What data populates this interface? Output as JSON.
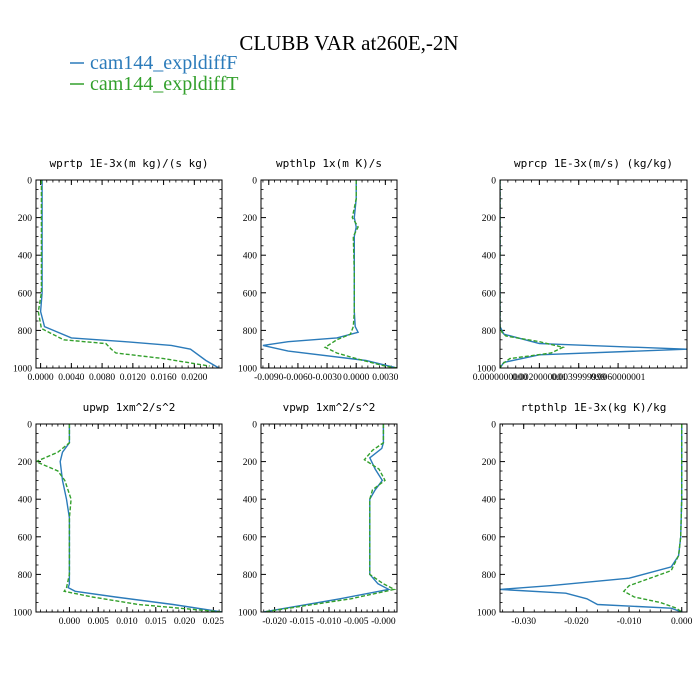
{
  "figure": {
    "title": "CLUBB VAR at260E,-2N",
    "colors": {
      "series_f": "#2b7bba",
      "series_t": "#33a02c",
      "axis": "#000000"
    }
  },
  "legend": [
    {
      "label": "cam144_expldiffF",
      "color": "#2b7bba",
      "dash": "solid"
    },
    {
      "label": "cam144_expldiffT",
      "color": "#33a02c",
      "dash": "dashed"
    }
  ],
  "chart_data": [
    {
      "type": "line",
      "title": "wprtp  1E-3x(m kg)/(s kg)",
      "xlim": [
        -0.0006,
        0.0236
      ],
      "ylim": [
        1000,
        0
      ],
      "xticks": [
        {
          "v": 0.0,
          "label": "0.0000"
        },
        {
          "v": 0.004,
          "label": "0.0040"
        },
        {
          "v": 0.008,
          "label": "0.0080"
        },
        {
          "v": 0.012,
          "label": "0.0120"
        },
        {
          "v": 0.016,
          "label": "0.0160"
        },
        {
          "v": 0.02,
          "label": "0.0200"
        }
      ],
      "yticks": [
        0,
        200,
        400,
        600,
        800,
        1000
      ],
      "series": [
        {
          "name": "cam144_expldiffF",
          "x": [
            0.0002,
            0.0002,
            0.0002,
            0.0002,
            0.0002,
            0.0002,
            0.0002,
            0.0,
            0.0005,
            0.004,
            0.011,
            0.017,
            0.0195,
            0.0215,
            0.0232
          ],
          "y": [
            0,
            100,
            200,
            300,
            400,
            500,
            600,
            700,
            780,
            840,
            860,
            880,
            900,
            960,
            1000
          ]
        },
        {
          "name": "cam144_expldiffT",
          "x": [
            0.0001,
            0.0001,
            0.0001,
            0.0001,
            0.0001,
            0.0001,
            0.0001,
            -0.0003,
            0.0001,
            0.003,
            0.0085,
            0.0092,
            0.0098,
            0.016,
            0.022
          ],
          "y": [
            0,
            100,
            200,
            300,
            400,
            500,
            600,
            700,
            790,
            850,
            870,
            900,
            920,
            950,
            990
          ]
        }
      ]
    },
    {
      "type": "line",
      "title": "wpthlp  1x(m K)/s",
      "xlim": [
        -0.0098,
        0.0042
      ],
      "ylim": [
        1000,
        0
      ],
      "xticks": [
        {
          "v": -0.009,
          "label": "-0.0090"
        },
        {
          "v": -0.006,
          "label": "-0.0060"
        },
        {
          "v": -0.003,
          "label": "-0.0030"
        },
        {
          "v": 0.0,
          "label": "0.0000"
        },
        {
          "v": 0.003,
          "label": "0.0030"
        }
      ],
      "yticks": [
        0,
        200,
        400,
        600,
        800,
        1000
      ],
      "series": [
        {
          "name": "cam144_expldiffF",
          "x": [
            0.0,
            0.0,
            -0.0002,
            0.0,
            -0.0002,
            -0.0002,
            -0.0002,
            -0.0001,
            0.0002,
            -0.002,
            -0.007,
            -0.0096,
            -0.007,
            0.001,
            0.0042
          ],
          "y": [
            0,
            100,
            200,
            250,
            300,
            500,
            700,
            780,
            810,
            840,
            860,
            880,
            910,
            960,
            1000
          ]
        },
        {
          "name": "cam144_expldiffT",
          "x": [
            0.0,
            0.0,
            -0.0004,
            0.0002,
            -0.0003,
            -0.0002,
            -0.0002,
            -0.0003,
            -0.0006,
            -0.002,
            -0.0032,
            -0.002,
            0.0,
            0.003,
            0.0042
          ],
          "y": [
            0,
            100,
            200,
            250,
            300,
            500,
            700,
            780,
            820,
            850,
            890,
            920,
            950,
            990,
            1000
          ]
        }
      ]
    },
    {
      "type": "line",
      "title": "wprcp  1E-3x(m/s) (kg/kg)",
      "xlim": [
        0.0,
        0.0095
      ],
      "ylim": [
        1000,
        0
      ],
      "xticks": [
        {
          "v": 0.0,
          "label": "0.0000000000"
        },
        {
          "v": 0.002,
          "label": "0.0020000001"
        },
        {
          "v": 0.004,
          "label": "0.0039999999"
        },
        {
          "v": 0.006,
          "label": "0.0060000001"
        }
      ],
      "yticks": [
        0,
        200,
        400,
        600,
        800,
        1000
      ],
      "series": [
        {
          "name": "cam144_expldiffF",
          "x": [
            0.0,
            0.0,
            0.0,
            0.0,
            0.0,
            0.0,
            0.0001,
            0.0002,
            0.002,
            0.0095,
            0.002,
            0.0002,
            0.0
          ],
          "y": [
            0,
            200,
            400,
            600,
            700,
            780,
            800,
            820,
            870,
            900,
            930,
            970,
            1000
          ]
        },
        {
          "name": "cam144_expldiffT",
          "x": [
            0.0,
            0.0,
            0.0,
            0.0,
            0.0,
            0.0,
            0.0001,
            0.0003,
            0.002,
            0.0032,
            0.0026,
            0.0005,
            0.0001,
            0.0
          ],
          "y": [
            0,
            200,
            400,
            600,
            700,
            780,
            810,
            830,
            860,
            890,
            920,
            950,
            980,
            1000
          ]
        }
      ]
    },
    {
      "type": "line",
      "title": "upwp  1xm^2/s^2",
      "xlim": [
        -0.0058,
        0.0265
      ],
      "ylim": [
        1000,
        0
      ],
      "xticks": [
        {
          "v": 0.0,
          "label": "0.000"
        },
        {
          "v": 0.005,
          "label": "0.005"
        },
        {
          "v": 0.01,
          "label": "0.010"
        },
        {
          "v": 0.015,
          "label": "0.015"
        },
        {
          "v": 0.02,
          "label": "0.020"
        },
        {
          "v": 0.025,
          "label": "0.025"
        }
      ],
      "yticks": [
        0,
        200,
        400,
        600,
        800,
        1000
      ],
      "series": [
        {
          "name": "cam144_expldiffF",
          "x": [
            0.0,
            0.0,
            -0.0012,
            -0.0016,
            -0.0012,
            -0.0005,
            0.0,
            0.0,
            0.0,
            -0.0002,
            0.001,
            0.008,
            0.018,
            0.0265
          ],
          "y": [
            0,
            100,
            150,
            200,
            300,
            400,
            500,
            700,
            850,
            870,
            890,
            920,
            960,
            1000
          ]
        },
        {
          "name": "cam144_expldiffT",
          "x": [
            0.0,
            0.0,
            -0.002,
            -0.0058,
            -0.002,
            -0.0008,
            0.0003,
            0.0,
            0.0,
            -0.0005,
            -0.0009,
            0.004,
            0.012,
            0.0265
          ],
          "y": [
            0,
            100,
            150,
            200,
            250,
            300,
            400,
            500,
            800,
            870,
            890,
            920,
            960,
            1000
          ]
        }
      ]
    },
    {
      "type": "line",
      "title": "vpwp  1xm^2/s^2",
      "xlim": [
        -0.0225,
        0.0025
      ],
      "ylim": [
        1000,
        0
      ],
      "xticks": [
        {
          "v": -0.02,
          "label": "-0.020"
        },
        {
          "v": -0.015,
          "label": "-0.015"
        },
        {
          "v": -0.01,
          "label": "-0.010"
        },
        {
          "v": -0.005,
          "label": "-0.005"
        },
        {
          "v": 0.0,
          "label": "-0.000"
        }
      ],
      "yticks": [
        0,
        200,
        400,
        600,
        800,
        1000
      ],
      "series": [
        {
          "name": "cam144_expldiffF",
          "x": [
            0.0,
            0.0,
            -0.0003,
            -0.0025,
            -0.0015,
            -0.0002,
            -0.0015,
            -0.0025,
            -0.0025,
            -0.0025,
            -0.001,
            0.001,
            -0.008,
            -0.022
          ],
          "y": [
            0,
            100,
            130,
            180,
            240,
            300,
            350,
            400,
            600,
            800,
            850,
            880,
            930,
            1000
          ]
        },
        {
          "name": "cam144_expldiffT",
          "x": [
            0.0,
            0.0,
            -0.002,
            -0.0035,
            -0.0008,
            0.0003,
            -0.002,
            -0.0025,
            -0.0025,
            -0.0025,
            0.0,
            0.002,
            -0.006,
            -0.022
          ],
          "y": [
            0,
            100,
            140,
            190,
            240,
            300,
            350,
            400,
            600,
            800,
            850,
            880,
            930,
            1000
          ]
        }
      ]
    },
    {
      "type": "line",
      "title": "rtpthlp  1E-3x(kg K)/kg",
      "xlim": [
        -0.0345,
        0.001
      ],
      "ylim": [
        1000,
        0
      ],
      "xticks": [
        {
          "v": -0.03,
          "label": "-0.030"
        },
        {
          "v": -0.02,
          "label": "-0.020"
        },
        {
          "v": -0.01,
          "label": "-0.010"
        },
        {
          "v": 0.0,
          "label": "0.000"
        }
      ],
      "yticks": [
        0,
        200,
        400,
        600,
        800,
        1000
      ],
      "series": [
        {
          "name": "cam144_expldiffF",
          "x": [
            0.0,
            0.0,
            -0.0002,
            -0.0006,
            -0.002,
            -0.01,
            -0.025,
            -0.0345,
            -0.022,
            -0.018,
            -0.016,
            -0.002,
            0.0
          ],
          "y": [
            0,
            400,
            600,
            700,
            760,
            820,
            860,
            880,
            900,
            930,
            960,
            980,
            1000
          ]
        },
        {
          "name": "cam144_expldiffT",
          "x": [
            0.0,
            0.0,
            -0.0002,
            -0.0006,
            -0.002,
            -0.006,
            -0.01,
            -0.011,
            -0.009,
            -0.004,
            -0.001,
            0.0
          ],
          "y": [
            0,
            400,
            600,
            700,
            780,
            820,
            860,
            890,
            920,
            950,
            980,
            1000
          ]
        }
      ]
    }
  ]
}
